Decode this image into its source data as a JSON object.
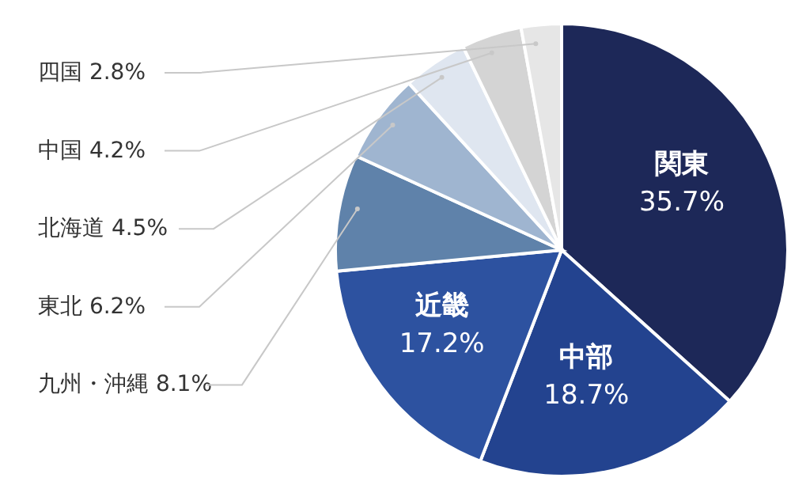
{
  "chart_data": {
    "type": "pie",
    "categories": [
      "関東",
      "中部",
      "近畿",
      "九州・沖縄",
      "東北",
      "北海道",
      "中国",
      "四国"
    ],
    "values": [
      35.7,
      18.7,
      17.2,
      8.1,
      6.2,
      4.5,
      4.2,
      2.8
    ],
    "value_labels": [
      "35.7%",
      "18.7%",
      "17.2%",
      "8.1%",
      "6.2%",
      "4.5%",
      "4.2%",
      "2.8%"
    ],
    "colors": [
      "#1d2858",
      "#23438f",
      "#2d52a0",
      "#5f82aa",
      "#9fb5d0",
      "#dfe6f0",
      "#d4d4d4",
      "#e6e6e6"
    ]
  }
}
